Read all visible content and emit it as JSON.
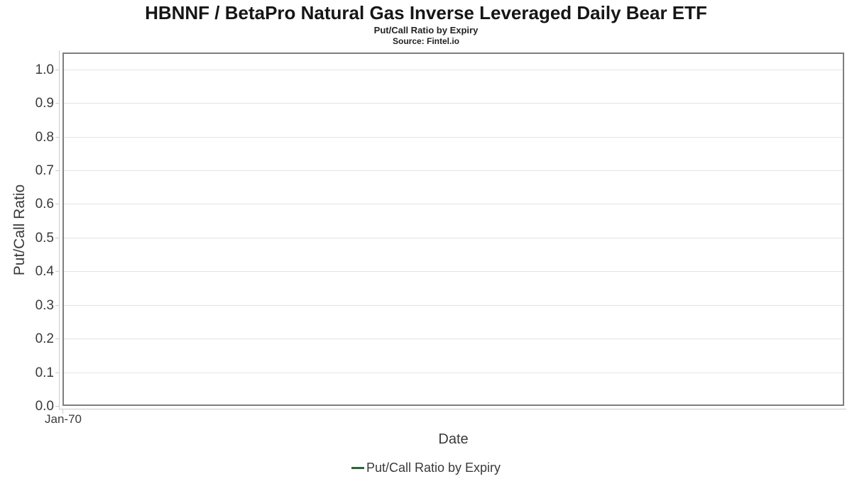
{
  "header": {
    "title": "HBNNF / BetaPro Natural Gas Inverse Leveraged Daily Bear ETF",
    "subtitle": "Put/Call Ratio by Expiry",
    "source": "Source: Fintel.io"
  },
  "chart_data": {
    "type": "line",
    "title": "HBNNF / BetaPro Natural Gas Inverse Leveraged Daily Bear ETF",
    "subtitle": "Put/Call Ratio by Expiry",
    "source": "Source: Fintel.io",
    "xlabel": "Date",
    "ylabel": "Put/Call Ratio",
    "x_tick_labels": [
      "Jan-70"
    ],
    "y_tick_labels": [
      "0.0",
      "0.1",
      "0.2",
      "0.3",
      "0.4",
      "0.5",
      "0.6",
      "0.7",
      "0.8",
      "0.9",
      "1.0"
    ],
    "y_tick_values": [
      0,
      0.1,
      0.2,
      0.3,
      0.4,
      0.5,
      0.6,
      0.7,
      0.8,
      0.9,
      1.0
    ],
    "ylim": [
      0,
      1.05
    ],
    "grid": "horizontal",
    "legend_position": "bottom",
    "series": [
      {
        "name": "Put/Call Ratio by Expiry",
        "color": "#2a6639",
        "x": [],
        "values": []
      }
    ]
  },
  "colors": {
    "plot_border": "#7e7e7e",
    "gridline": "#e4e4e4",
    "axis_line": "#cbcbcb",
    "tick_text": "#3a3a3a",
    "title_text": "#161616",
    "series_green": "#2a6639"
  }
}
